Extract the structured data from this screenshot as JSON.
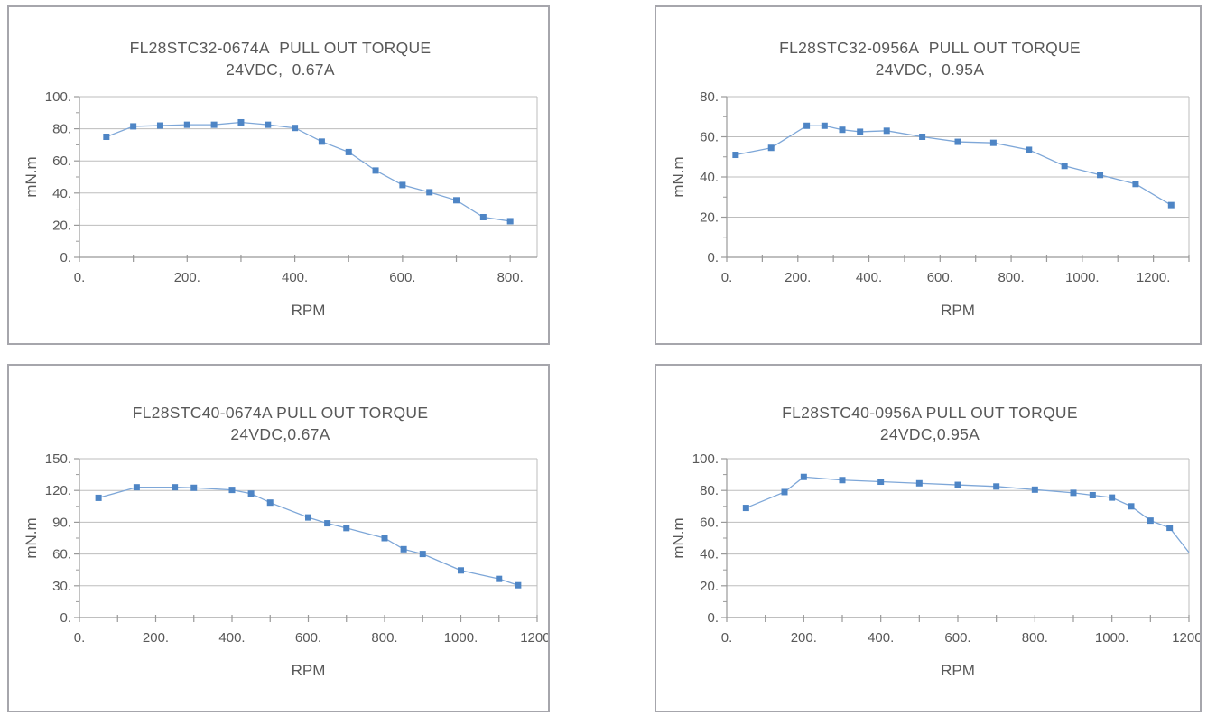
{
  "style": {
    "marker_color": "#4e85c5",
    "line_color": "#7ea7d8",
    "grid_color": "#bdbdbd",
    "axis_color": "#999999",
    "text_color": "#585858",
    "panel_border_color": "#a6a6ac",
    "background": "#ffffff"
  },
  "chart_data": [
    {
      "type": "line",
      "title": "FL28STC32-0674A  PULL OUT TORQUE",
      "subtitle": "24VDC,  0.67A",
      "xlabel": "RPM",
      "ylabel": "mN.m",
      "xlim": [
        0,
        850
      ],
      "ylim": [
        0,
        100
      ],
      "x_major_tick_step": 200,
      "x_minor_tick_step": 100,
      "y_major_tick_step": 20,
      "y_minor_tick_step": 10,
      "x_tick_labels": [
        "0.",
        "200.",
        "400.",
        "600.",
        "800."
      ],
      "y_tick_labels": [
        "0.",
        "20.",
        "40.",
        "60.",
        "80.",
        "100."
      ],
      "grid": "horizontal",
      "legend": "none",
      "marker": "square",
      "x": [
        50,
        100,
        150,
        200,
        250,
        300,
        350,
        400,
        450,
        500,
        550,
        600,
        650,
        700,
        750,
        800
      ],
      "y": [
        75,
        81.5,
        82,
        82.5,
        82.5,
        84,
        82.5,
        80.5,
        72,
        65.5,
        54,
        45,
        40.5,
        35.5,
        25,
        22.5
      ],
      "marker_skip_indices": []
    },
    {
      "type": "line",
      "title": "FL28STC32-0956A  PULL OUT TORQUE",
      "subtitle": "24VDC,  0.95A",
      "xlabel": "RPM",
      "ylabel": "mN.m",
      "xlim": [
        0,
        1300
      ],
      "ylim": [
        0,
        80
      ],
      "x_major_tick_step": 200,
      "x_minor_tick_step": 100,
      "y_major_tick_step": 20,
      "y_minor_tick_step": 10,
      "x_tick_labels": [
        "0.",
        "200.",
        "400.",
        "600.",
        "800.",
        "1000.",
        "1200."
      ],
      "y_tick_labels": [
        "0.",
        "20.",
        "40.",
        "60.",
        "80."
      ],
      "grid": "horizontal",
      "legend": "none",
      "marker": "square",
      "x": [
        25,
        125,
        225,
        275,
        325,
        375,
        450,
        550,
        650,
        750,
        850,
        950,
        1050,
        1150,
        1250
      ],
      "y": [
        51,
        54.5,
        65.5,
        65.5,
        63.5,
        62.5,
        63,
        60,
        57.5,
        57,
        53.5,
        45.5,
        41,
        36.5,
        26
      ],
      "marker_skip_indices": []
    },
    {
      "type": "line",
      "title": "FL28STC40-0674A PULL OUT TORQUE",
      "subtitle": "24VDC,0.67A",
      "xlabel": "RPM",
      "ylabel": "mN.m",
      "xlim": [
        0,
        1200
      ],
      "ylim": [
        0,
        150
      ],
      "x_major_tick_step": 200,
      "x_minor_tick_step": 100,
      "y_major_tick_step": 30,
      "y_minor_tick_step": 15,
      "x_tick_labels": [
        "0.",
        "200.",
        "400.",
        "600.",
        "800.",
        "1000.",
        "1200."
      ],
      "y_tick_labels": [
        "0.",
        "30.",
        "60.",
        "90.",
        "120.",
        "150."
      ],
      "grid": "horizontal",
      "legend": "none",
      "marker": "square",
      "x": [
        50,
        150,
        250,
        300,
        400,
        450,
        500,
        600,
        650,
        700,
        800,
        850,
        900,
        1000,
        1100,
        1150
      ],
      "y": [
        113,
        123,
        123,
        122.5,
        120.5,
        117,
        108.5,
        94.5,
        89,
        84.5,
        75,
        64.5,
        60,
        44.5,
        36.5,
        30.5
      ],
      "marker_skip_indices": []
    },
    {
      "type": "line",
      "title": "FL28STC40-0956A PULL OUT TORQUE",
      "subtitle": "24VDC,0.95A",
      "xlabel": "RPM",
      "ylabel": "mN.m",
      "xlim": [
        0,
        1200
      ],
      "ylim": [
        0,
        100
      ],
      "x_major_tick_step": 200,
      "x_minor_tick_step": 100,
      "y_major_tick_step": 20,
      "y_minor_tick_step": 10,
      "x_tick_labels": [
        "0.",
        "200.",
        "400.",
        "600.",
        "800.",
        "1000.",
        "1200."
      ],
      "y_tick_labels": [
        "0.",
        "20.",
        "40.",
        "60.",
        "80.",
        "100."
      ],
      "grid": "horizontal",
      "legend": "none",
      "marker": "square",
      "x": [
        50,
        150,
        200,
        300,
        400,
        500,
        600,
        700,
        800,
        900,
        950,
        1000,
        1050,
        1100,
        1150,
        1200
      ],
      "y": [
        69,
        79,
        88.5,
        86.5,
        85.5,
        84.5,
        83.5,
        82.5,
        80.5,
        78.5,
        77,
        75.5,
        70,
        61,
        56.5,
        41
      ],
      "marker_skip_indices": [
        15
      ]
    }
  ]
}
